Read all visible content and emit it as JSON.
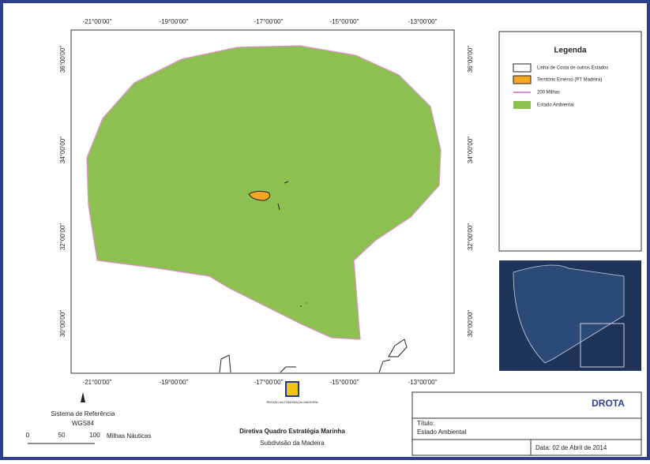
{
  "map": {
    "lon_labels": [
      "-21°00'00\"",
      "-19°00'00\"",
      "-17°00'00\"",
      "-15°00'00\"",
      "-13°00'00\""
    ],
    "lat_labels": [
      "36°00'00\"",
      "34°00'00\"",
      "32°00'00\"",
      "30°00'00\""
    ]
  },
  "legend": {
    "title": "Legenda",
    "items": [
      "Linha de Costa de outros Estados",
      "Território Emerso (PT Madeira)",
      "200 Milhas",
      "Estado Ambiental"
    ]
  },
  "reference": {
    "label": "Sistema de Referência",
    "datum": "WGS84"
  },
  "scale": {
    "ticks": [
      "0",
      "50",
      "100"
    ],
    "unit": "Milhas Náuticas"
  },
  "logo": {
    "text": "REGIÃO AUTÓNOMA DA MADEIRA"
  },
  "footer": {
    "title": "Diretiva Quadro Estratégia Marinha",
    "subtitle": "Subdivisão da Madeira"
  },
  "title_block": {
    "brand": "DROTA",
    "title_label": "Título:",
    "title": "Estado Ambiental",
    "date": "Data: 02 de Abril de 2014"
  }
}
